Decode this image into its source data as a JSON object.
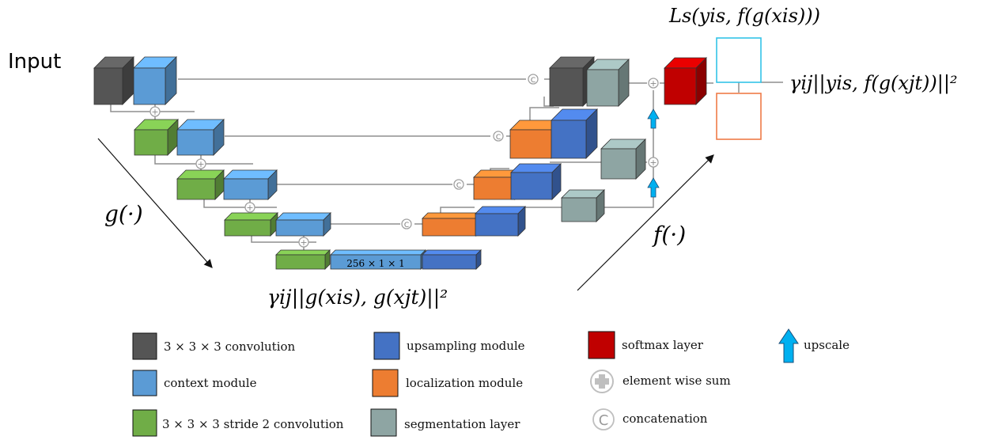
{
  "input_label": "Input",
  "ops": {
    "concat": "C",
    "sum": "+"
  },
  "bottleneck_label": "256 × 1 × 1",
  "formulas": {
    "encoder_fn": "g(·)",
    "decoder_fn": "f(·)",
    "feature_loss": "γij||g(xis), g(xjt)||²",
    "supervised_loss": "Ls(yis, f(g(xis)))",
    "consistency_loss": "γij||yis, f(g(xjt))||²"
  },
  "legend": [
    {
      "label": "3 × 3 × 3 convolution",
      "color": "#555555",
      "icon": "dark-gray-square-icon"
    },
    {
      "label": "context module",
      "color": "#5b9bd5",
      "icon": "light-blue-square-icon"
    },
    {
      "label": "3 × 3 × 3 stride 2 convolution",
      "color": "#70ad47",
      "icon": "green-square-icon"
    },
    {
      "label": "upsampling module",
      "color": "#4472c4",
      "icon": "dark-blue-square-icon"
    },
    {
      "label": "localization module",
      "color": "#ed7d31",
      "icon": "orange-square-icon"
    },
    {
      "label": "segmentation layer",
      "color": "#8ea5a3",
      "icon": "gray-green-square-icon"
    },
    {
      "label": "softmax layer",
      "color": "#c00000",
      "icon": "red-square-icon"
    },
    {
      "label": "element wise sum",
      "color": "#bfbfbf",
      "icon": "plus-circle-icon"
    },
    {
      "label": "concatenation",
      "color": "#bfbfbf",
      "icon": "c-circle-icon"
    },
    {
      "label": "upscale",
      "color": "#00b0f0",
      "icon": "up-arrow-icon"
    }
  ],
  "colors": {
    "conv": "#555555",
    "context": "#5b9bd5",
    "stride": "#70ad47",
    "upsample": "#4472c4",
    "localization": "#ed7d31",
    "segmentation": "#8ea5a3",
    "softmax": "#c00000",
    "upscale": "#00b0f0",
    "output_top": "#33c3e8",
    "output_bottom": "#ef7b48"
  }
}
